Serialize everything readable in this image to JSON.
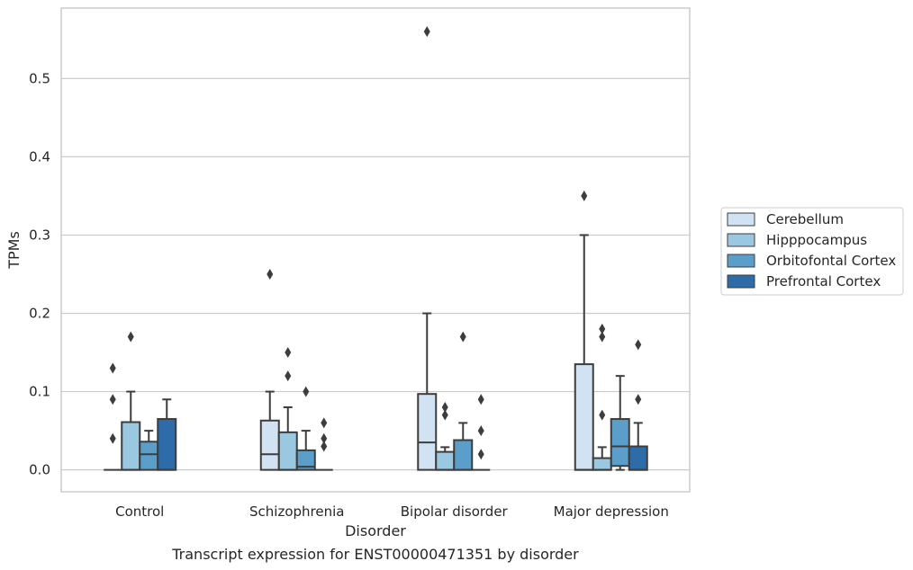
{
  "chart_data": {
    "type": "box",
    "xlabel": "Disorder",
    "ylabel": "TPMs",
    "caption": "Transcript expression for ENST00000471351 by disorder",
    "ylim": [
      -0.028,
      0.59
    ],
    "yticks": [
      0.0,
      0.1,
      0.2,
      0.3,
      0.4,
      0.5
    ],
    "ytick_labels": [
      "0.0",
      "0.1",
      "0.2",
      "0.3",
      "0.4",
      "0.5"
    ],
    "grid": true,
    "legend_position": "right",
    "categories": [
      "Control",
      "Schizophrenia",
      "Bipolar disorder",
      "Major depression"
    ],
    "series": [
      {
        "name": "Cerebellum",
        "color": "#d1e2f2",
        "boxes": [
          {
            "whislo": 0,
            "q1": 0,
            "med": 0,
            "q3": 0,
            "whishi": 0,
            "fliers": [
              0.13,
              0.09,
              0.04
            ]
          },
          {
            "whislo": 0,
            "q1": 0,
            "med": 0.02,
            "q3": 0.063,
            "whishi": 0.1,
            "fliers": [
              0.25
            ]
          },
          {
            "whislo": 0,
            "q1": 0,
            "med": 0.035,
            "q3": 0.097,
            "whishi": 0.2,
            "fliers": [
              0.56
            ]
          },
          {
            "whislo": 0,
            "q1": 0,
            "med": 0,
            "q3": 0.135,
            "whishi": 0.3,
            "fliers": [
              0.35
            ]
          }
        ]
      },
      {
        "name": "Hipppocampus",
        "color": "#9ac8e0",
        "boxes": [
          {
            "whislo": 0,
            "q1": 0,
            "med": 0,
            "q3": 0.061,
            "whishi": 0.1,
            "fliers": [
              0.17
            ]
          },
          {
            "whislo": 0,
            "q1": 0,
            "med": 0,
            "q3": 0.048,
            "whishi": 0.08,
            "fliers": [
              0.15,
              0.12
            ]
          },
          {
            "whislo": 0,
            "q1": 0,
            "med": 0,
            "q3": 0.023,
            "whishi": 0.029,
            "fliers": [
              0.08,
              0.07
            ]
          },
          {
            "whislo": 0,
            "q1": 0,
            "med": 0,
            "q3": 0.015,
            "whishi": 0.029,
            "fliers": [
              0.18,
              0.17,
              0.07
            ]
          }
        ]
      },
      {
        "name": "Orbitofontal Cortex",
        "color": "#5a9ec9",
        "boxes": [
          {
            "whislo": 0,
            "q1": 0,
            "med": 0.02,
            "q3": 0.036,
            "whishi": 0.05,
            "fliers": []
          },
          {
            "whislo": 0,
            "q1": 0,
            "med": 0.004,
            "q3": 0.025,
            "whishi": 0.05,
            "fliers": [
              0.1
            ]
          },
          {
            "whislo": 0,
            "q1": 0,
            "med": 0,
            "q3": 0.038,
            "whishi": 0.06,
            "fliers": [
              0.17
            ]
          },
          {
            "whislo": 0,
            "q1": 0.005,
            "med": 0.03,
            "q3": 0.065,
            "whishi": 0.12,
            "fliers": []
          }
        ]
      },
      {
        "name": "Prefrontal Cortex",
        "color": "#2d6ca8",
        "boxes": [
          {
            "whislo": 0,
            "q1": 0,
            "med": 0,
            "q3": 0.065,
            "whishi": 0.09,
            "fliers": []
          },
          {
            "whislo": 0,
            "q1": 0,
            "med": 0,
            "q3": 0,
            "whishi": 0,
            "fliers": [
              0.06,
              0.04,
              0.03
            ]
          },
          {
            "whislo": 0,
            "q1": 0,
            "med": 0,
            "q3": 0,
            "whishi": 0,
            "fliers": [
              0.09,
              0.05,
              0.02
            ]
          },
          {
            "whislo": 0,
            "q1": 0,
            "med": 0,
            "q3": 0.03,
            "whishi": 0.06,
            "fliers": [
              0.16,
              0.09
            ]
          }
        ]
      }
    ]
  }
}
